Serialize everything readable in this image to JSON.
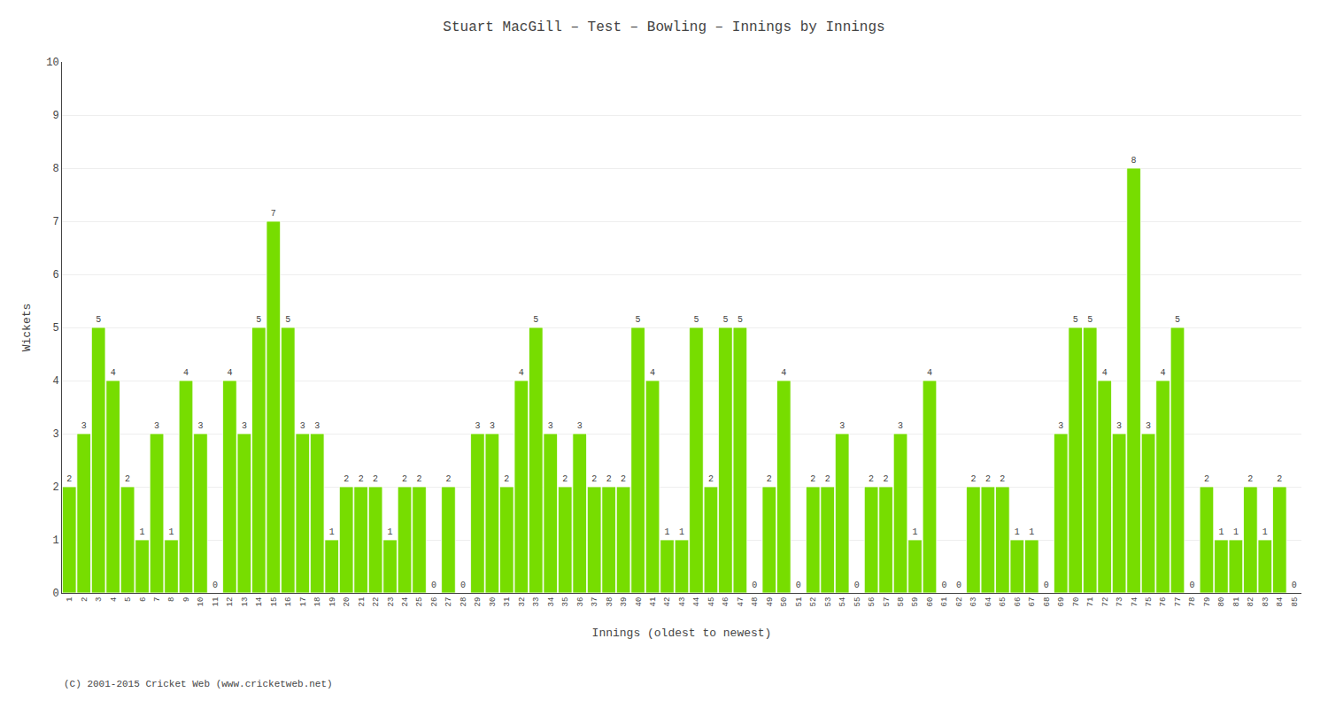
{
  "chart_data": {
    "type": "bar",
    "title": "Stuart MacGill – Test – Bowling – Innings by Innings",
    "xlabel": "Innings (oldest to newest)",
    "ylabel": "Wickets",
    "annotations": [
      "(C) 2001-2015 Cricket Web (www.cricketweb.net)"
    ],
    "categories": [
      "1",
      "2",
      "3",
      "4",
      "5",
      "6",
      "7",
      "8",
      "9",
      "10",
      "11",
      "12",
      "13",
      "14",
      "15",
      "16",
      "17",
      "18",
      "19",
      "20",
      "21",
      "22",
      "23",
      "24",
      "25",
      "26",
      "27",
      "28",
      "29",
      "30",
      "31",
      "32",
      "33",
      "34",
      "35",
      "36",
      "37",
      "38",
      "39",
      "40",
      "41",
      "42",
      "43",
      "44",
      "45",
      "46",
      "47",
      "48",
      "49",
      "50",
      "51",
      "52",
      "53",
      "54",
      "55",
      "56",
      "57",
      "58",
      "59",
      "60",
      "61",
      "62",
      "63",
      "64",
      "65",
      "66",
      "67",
      "68",
      "69",
      "70",
      "71",
      "72",
      "73",
      "74",
      "75",
      "76",
      "77",
      "78",
      "79",
      "80",
      "81",
      "82",
      "83",
      "84",
      "85"
    ],
    "values": [
      2,
      3,
      5,
      4,
      2,
      1,
      3,
      1,
      4,
      3,
      0,
      4,
      3,
      5,
      7,
      5,
      3,
      3,
      1,
      2,
      2,
      2,
      1,
      2,
      2,
      0,
      2,
      0,
      3,
      3,
      2,
      4,
      5,
      3,
      2,
      3,
      2,
      2,
      2,
      5,
      4,
      1,
      1,
      5,
      2,
      5,
      5,
      0,
      2,
      4,
      0,
      2,
      2,
      3,
      0,
      2,
      2,
      3,
      1,
      4,
      0,
      0,
      2,
      2,
      2,
      1,
      1,
      0,
      3,
      5,
      5,
      4,
      3,
      8,
      3,
      4,
      5,
      0,
      2,
      1,
      1,
      2,
      1,
      2,
      0
    ],
    "color": "#77dd00",
    "ylim": [
      0,
      10
    ],
    "yticks": [
      0,
      1,
      2,
      3,
      4,
      5,
      6,
      7,
      8,
      9,
      10
    ],
    "grid": true,
    "data_labels": true
  }
}
